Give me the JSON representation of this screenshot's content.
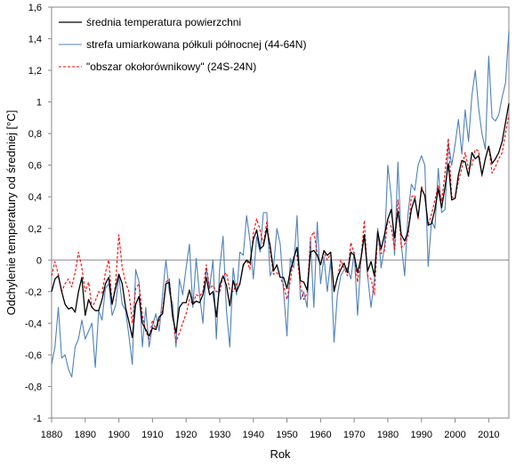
{
  "chart_data": {
    "type": "line",
    "xlabel": "Rok",
    "ylabel": "Odchylenie temperatury od średniej [°C]",
    "xlim": [
      1880,
      2016
    ],
    "ylim": [
      -1,
      1.6
    ],
    "xticks": [
      1880,
      1890,
      1900,
      1910,
      1920,
      1930,
      1940,
      1950,
      1960,
      1970,
      1980,
      1990,
      2000,
      2010
    ],
    "xtick_labels": [
      "1880",
      "1890",
      "1900",
      "1910",
      "1920",
      "1930",
      "1940",
      "1950",
      "1960",
      "1970",
      "1980",
      "1990",
      "2000",
      "2010"
    ],
    "yticks": [
      -1,
      -0.8,
      -0.6,
      -0.4,
      -0.2,
      0,
      0.2,
      0.4,
      0.6,
      0.8,
      1,
      1.2,
      1.4,
      1.6
    ],
    "ytick_labels": [
      "-1",
      "-0,8",
      "-0,6",
      "-0,4",
      "-0,2",
      "0",
      "0,2",
      "0,4",
      "0,6",
      "0,8",
      "1",
      "1,2",
      "1,4",
      "1,6"
    ],
    "grid": false,
    "legend_position": "top-left",
    "x": [
      1880,
      1881,
      1882,
      1883,
      1884,
      1885,
      1886,
      1887,
      1888,
      1889,
      1890,
      1891,
      1892,
      1893,
      1894,
      1895,
      1896,
      1897,
      1898,
      1899,
      1900,
      1901,
      1902,
      1903,
      1904,
      1905,
      1906,
      1907,
      1908,
      1909,
      1910,
      1911,
      1912,
      1913,
      1914,
      1915,
      1916,
      1917,
      1918,
      1919,
      1920,
      1921,
      1922,
      1923,
      1924,
      1925,
      1926,
      1927,
      1928,
      1929,
      1930,
      1931,
      1932,
      1933,
      1934,
      1935,
      1936,
      1937,
      1938,
      1939,
      1940,
      1941,
      1942,
      1943,
      1944,
      1945,
      1946,
      1947,
      1948,
      1949,
      1950,
      1951,
      1952,
      1953,
      1954,
      1955,
      1956,
      1957,
      1958,
      1959,
      1960,
      1961,
      1962,
      1963,
      1964,
      1965,
      1966,
      1967,
      1968,
      1969,
      1970,
      1971,
      1972,
      1973,
      1974,
      1975,
      1976,
      1977,
      1978,
      1979,
      1980,
      1981,
      1982,
      1983,
      1984,
      1985,
      1986,
      1987,
      1988,
      1989,
      1990,
      1991,
      1992,
      1993,
      1994,
      1995,
      1996,
      1997,
      1998,
      1999,
      2000,
      2001,
      2002,
      2003,
      2004,
      2005,
      2006,
      2007,
      2008,
      2009,
      2010,
      2011,
      2012,
      2013,
      2014,
      2015,
      2016
    ],
    "series": [
      {
        "name": "średnia temperatura powierzchni",
        "color": "#000000",
        "dashed": false,
        "values": [
          -0.2,
          -0.12,
          -0.1,
          -0.2,
          -0.28,
          -0.31,
          -0.3,
          -0.33,
          -0.2,
          -0.11,
          -0.35,
          -0.25,
          -0.3,
          -0.32,
          -0.32,
          -0.25,
          -0.15,
          -0.11,
          -0.28,
          -0.18,
          -0.09,
          -0.15,
          -0.3,
          -0.39,
          -0.49,
          -0.28,
          -0.23,
          -0.4,
          -0.44,
          -0.48,
          -0.43,
          -0.44,
          -0.36,
          -0.34,
          -0.15,
          -0.14,
          -0.36,
          -0.46,
          -0.3,
          -0.27,
          -0.27,
          -0.19,
          -0.28,
          -0.26,
          -0.27,
          -0.22,
          -0.11,
          -0.22,
          -0.2,
          -0.36,
          -0.16,
          -0.1,
          -0.16,
          -0.29,
          -0.13,
          -0.2,
          -0.15,
          -0.03,
          -0.0,
          -0.02,
          0.13,
          0.19,
          0.07,
          0.09,
          0.2,
          0.09,
          -0.07,
          -0.03,
          -0.11,
          -0.11,
          -0.18,
          -0.07,
          0.01,
          0.08,
          -0.13,
          -0.14,
          -0.19,
          0.05,
          0.06,
          0.03,
          -0.03,
          0.06,
          0.03,
          0.05,
          -0.2,
          -0.11,
          -0.06,
          -0.02,
          -0.08,
          0.05,
          0.03,
          -0.08,
          0.01,
          0.16,
          -0.07,
          -0.01,
          -0.1,
          0.18,
          0.07,
          0.16,
          0.26,
          0.32,
          0.14,
          0.31,
          0.16,
          0.12,
          0.18,
          0.32,
          0.39,
          0.27,
          0.45,
          0.41,
          0.22,
          0.23,
          0.32,
          0.45,
          0.33,
          0.46,
          0.61,
          0.38,
          0.39,
          0.54,
          0.63,
          0.62,
          0.53,
          0.68,
          0.64,
          0.66,
          0.54,
          0.64,
          0.72,
          0.61,
          0.64,
          0.68,
          0.75,
          0.87,
          0.99
        ]
      },
      {
        "name": "strefa umiarkowana półkuli północnej (44-64N)",
        "color": "#4f81bd",
        "dashed": false,
        "values": [
          -0.66,
          -0.55,
          -0.3,
          -0.62,
          -0.6,
          -0.69,
          -0.74,
          -0.55,
          -0.5,
          -0.38,
          -0.5,
          -0.45,
          -0.4,
          -0.68,
          -0.32,
          -0.38,
          -0.18,
          -0.15,
          -0.35,
          -0.29,
          -0.1,
          -0.28,
          -0.32,
          -0.48,
          -0.66,
          -0.06,
          -0.14,
          -0.55,
          -0.3,
          -0.55,
          -0.42,
          -0.34,
          -0.45,
          -0.22,
          0.0,
          -0.2,
          -0.28,
          -0.55,
          -0.12,
          -0.22,
          -0.05,
          0.1,
          -0.3,
          0.01,
          -0.22,
          -0.4,
          -0.05,
          -0.18,
          0.0,
          -0.5,
          -0.05,
          0.15,
          -0.32,
          -0.55,
          -0.05,
          -0.22,
          0.05,
          0.03,
          0.28,
          0.12,
          -0.12,
          0.15,
          0.05,
          0.3,
          0.3,
          -0.1,
          -0.05,
          0.2,
          0.1,
          -0.2,
          -0.48,
          0.01,
          -0.05,
          0.28,
          -0.25,
          -0.2,
          -0.3,
          0.13,
          -0.3,
          0.24,
          -0.15,
          0.02,
          -0.2,
          0.0,
          -0.52,
          -0.22,
          -0.1,
          -0.06,
          -0.05,
          -0.12,
          0.05,
          -0.35,
          0.0,
          0.15,
          -0.1,
          -0.3,
          -0.12,
          0.2,
          -0.05,
          0.08,
          0.6,
          0.4,
          0.03,
          0.62,
          0.1,
          -0.1,
          0.29,
          0.48,
          0.44,
          0.6,
          0.66,
          0.6,
          -0.04,
          0.25,
          0.2,
          0.58,
          0.3,
          0.32,
          0.74,
          0.6,
          0.73,
          0.89,
          0.67,
          0.95,
          0.75,
          1.04,
          1.2,
          0.96,
          0.8,
          0.7,
          1.29,
          0.9,
          0.88,
          0.92,
          1.03,
          1.12,
          1.45
        ]
      },
      {
        "name": "\"obszar okołorównikowy\" (24S-24N)",
        "color": "#ff0000",
        "dashed": true,
        "values": [
          -0.1,
          -0.01,
          -0.09,
          -0.2,
          -0.15,
          -0.12,
          -0.17,
          -0.08,
          0.05,
          -0.05,
          -0.2,
          -0.14,
          -0.3,
          -0.26,
          -0.2,
          -0.21,
          -0.08,
          0.0,
          -0.28,
          -0.16,
          0.16,
          -0.05,
          -0.14,
          -0.2,
          -0.4,
          -0.18,
          -0.15,
          -0.35,
          -0.45,
          -0.5,
          -0.38,
          -0.44,
          -0.38,
          -0.32,
          -0.14,
          -0.12,
          -0.34,
          -0.52,
          -0.46,
          -0.4,
          -0.34,
          -0.25,
          -0.28,
          -0.22,
          -0.23,
          -0.2,
          -0.03,
          -0.18,
          -0.16,
          -0.2,
          -0.2,
          -0.1,
          -0.08,
          -0.19,
          -0.2,
          -0.15,
          -0.15,
          -0.04,
          0.0,
          -0.06,
          0.17,
          0.26,
          0.19,
          0.1,
          0.24,
          0.06,
          -0.09,
          -0.08,
          -0.11,
          -0.16,
          -0.25,
          -0.13,
          0.02,
          0.03,
          -0.16,
          -0.25,
          -0.21,
          0.14,
          0.18,
          0.04,
          -0.03,
          0.05,
          0.0,
          0.04,
          -0.18,
          -0.12,
          0.0,
          -0.05,
          -0.1,
          0.11,
          0.04,
          -0.14,
          0.0,
          0.25,
          -0.1,
          -0.12,
          -0.22,
          0.18,
          0.04,
          0.06,
          0.26,
          0.21,
          0.07,
          0.38,
          0.08,
          0.1,
          0.15,
          0.4,
          0.41,
          0.26,
          0.47,
          0.4,
          0.22,
          0.29,
          0.38,
          0.47,
          0.37,
          0.55,
          0.77,
          0.4,
          0.39,
          0.5,
          0.58,
          0.68,
          0.58,
          0.6,
          0.7,
          0.69,
          0.53,
          0.64,
          0.72,
          0.55,
          0.59,
          0.64,
          0.68,
          0.8,
          0.92
        ]
      }
    ]
  }
}
